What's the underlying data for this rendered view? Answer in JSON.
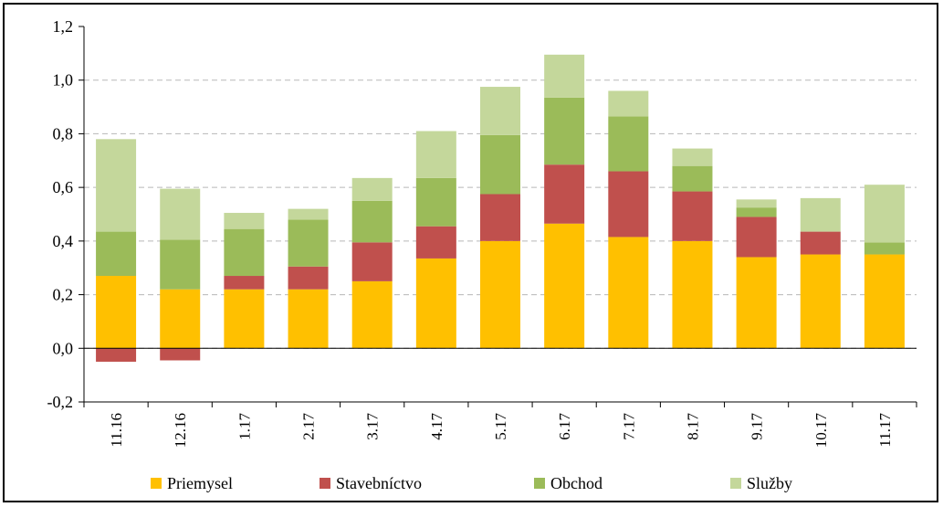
{
  "chart_data": {
    "type": "bar",
    "stacked": true,
    "categories": [
      "11.16",
      "12.16",
      "1.17",
      "2.17",
      "3.17",
      "4.17",
      "5.17",
      "6.17",
      "7.17",
      "8.17",
      "9.17",
      "10.17",
      "11.17"
    ],
    "series": [
      {
        "name": "Priemysel",
        "color": "#FFC000",
        "values": [
          0.27,
          0.22,
          0.22,
          0.22,
          0.25,
          0.335,
          0.4,
          0.465,
          0.415,
          0.4,
          0.34,
          0.35,
          0.35
        ]
      },
      {
        "name": "Stavebníctvo",
        "color": "#C0504D",
        "values": [
          -0.05,
          -0.045,
          0.05,
          0.085,
          0.145,
          0.12,
          0.175,
          0.22,
          0.245,
          0.185,
          0.15,
          0.085,
          0.0
        ]
      },
      {
        "name": "Obchod",
        "color": "#9BBB59",
        "values": [
          0.165,
          0.185,
          0.175,
          0.175,
          0.155,
          0.18,
          0.22,
          0.25,
          0.205,
          0.095,
          0.035,
          0.0,
          0.045
        ]
      },
      {
        "name": "Služby",
        "color": "#C4D79B",
        "values": [
          0.345,
          0.19,
          0.06,
          0.04,
          0.085,
          0.175,
          0.18,
          0.16,
          0.095,
          0.065,
          0.03,
          0.125,
          0.215
        ]
      }
    ],
    "yticks": [
      "1,2",
      "1,0",
      "0,8",
      "0,6",
      "0,4",
      "0,2",
      "0,0",
      "-0,2"
    ],
    "ylim": [
      -0.2,
      1.2
    ],
    "grid": true,
    "legend_position": "bottom"
  }
}
